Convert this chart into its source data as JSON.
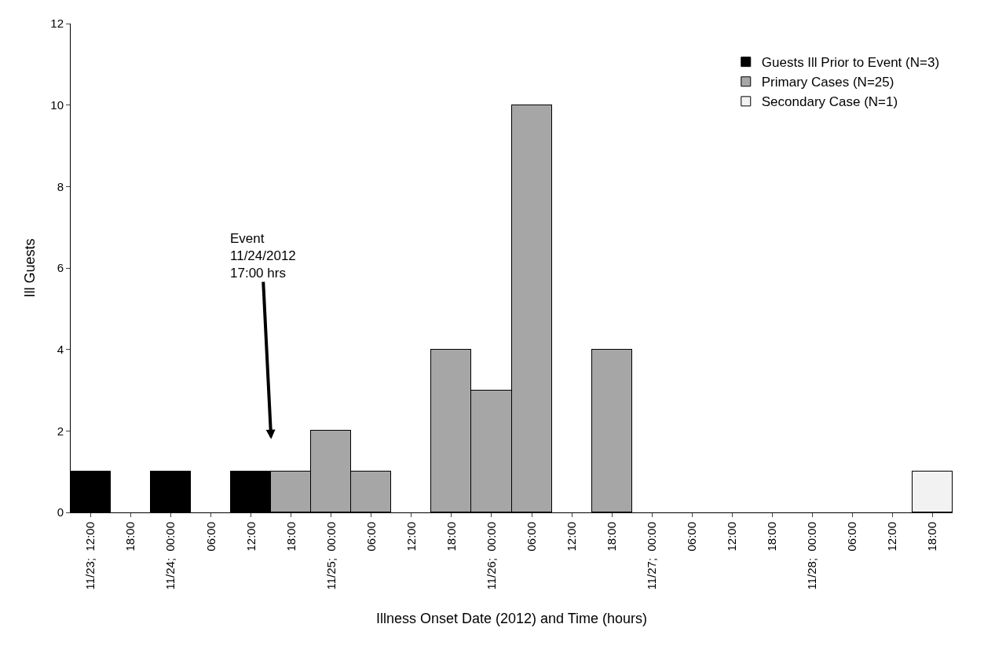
{
  "chart_data": {
    "type": "bar",
    "stacked": true,
    "xlabel": "Illness Onset Date (2012) and Time (hours)",
    "ylabel": "Ill Guests",
    "categories": [
      "11/23;  12:00",
      "18:00",
      "11/24;  00:00",
      "06:00",
      "12:00",
      "18:00",
      "11/25;  00:00",
      "06:00",
      "12:00",
      "18:00",
      "11/26;  00:00",
      "06:00",
      "12:00",
      "18:00",
      "11/27;  00:00",
      "06:00",
      "12:00",
      "18:00",
      "11/28;  00:00",
      "06:00",
      "12:00",
      "18:00"
    ],
    "series": [
      {
        "name": "Guests Ill Prior to Event (N=3)",
        "color": "#000000",
        "values": [
          1,
          null,
          1,
          null,
          1,
          null,
          null,
          null,
          null,
          null,
          null,
          null,
          null,
          null,
          null,
          null,
          null,
          null,
          null,
          null,
          null,
          null
        ]
      },
      {
        "name": "Primary Cases (N=25)",
        "color": "#a6a6a6",
        "values": [
          null,
          null,
          null,
          null,
          null,
          1,
          2,
          1,
          null,
          4,
          3,
          10,
          null,
          4,
          null,
          null,
          null,
          null,
          null,
          null,
          null,
          null
        ]
      },
      {
        "name": "Secondary Case (N=1)",
        "color": "#f2f2f2",
        "values": [
          null,
          null,
          null,
          null,
          null,
          null,
          null,
          null,
          null,
          null,
          null,
          null,
          null,
          null,
          null,
          null,
          null,
          null,
          null,
          null,
          null,
          1
        ]
      }
    ],
    "ylim": [
      0,
      12
    ],
    "yticks": [
      0,
      2,
      4,
      6,
      8,
      10,
      12
    ],
    "legend": "top right",
    "annotations": [
      "Event\n11/24/2012\n17:00 hrs"
    ]
  }
}
